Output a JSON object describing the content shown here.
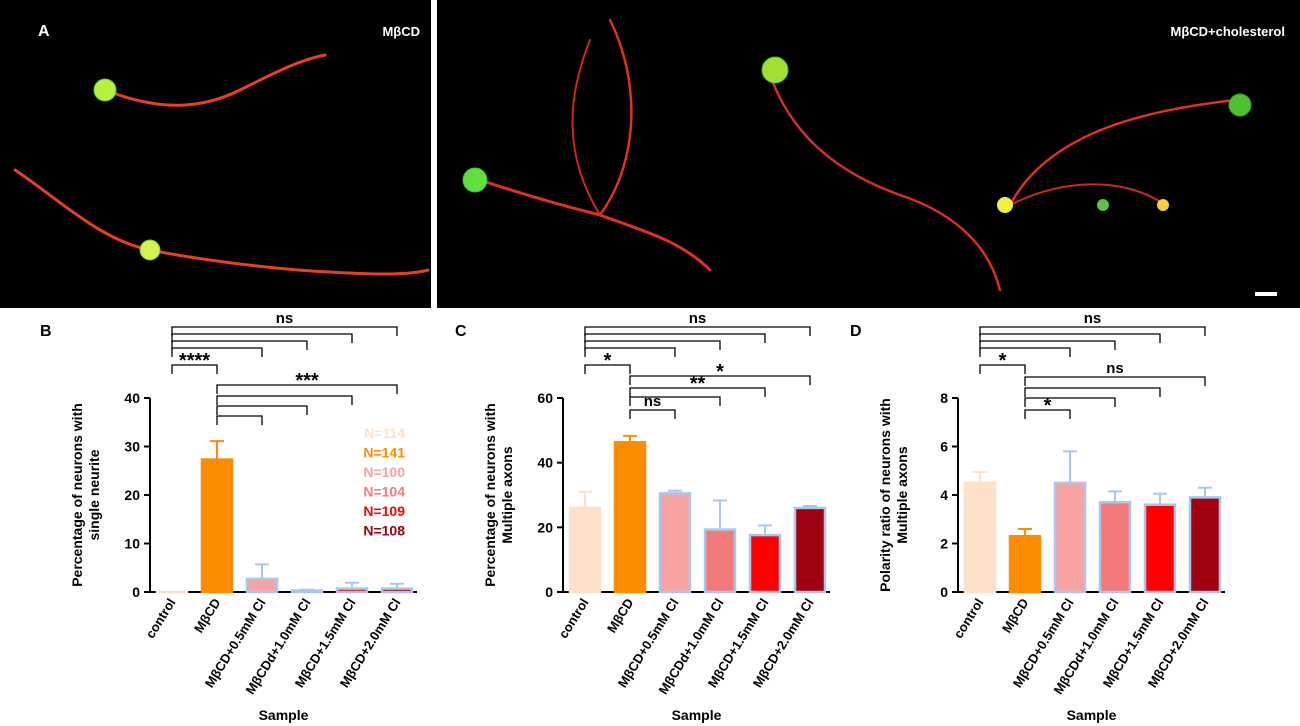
{
  "panel_a": {
    "label": "A",
    "left_title": "MβCD",
    "right_title": "MβCD+cholesterol"
  },
  "chart_data": [
    {
      "type": "bar",
      "panel": "B",
      "xlabel": "Sample",
      "ylabel": [
        "Percentage of neurons with",
        "single neurite"
      ],
      "categories": [
        "control",
        "MβCD",
        "MβCD+0.5mM Cl",
        "MβCDd+1.0mM Cl",
        "MβCD+1.5mM Cl",
        "MβCD+2.0mM Cl"
      ],
      "values": [
        0,
        27.3,
        2.7,
        0.3,
        0.7,
        0.7
      ],
      "errors": [
        0,
        3.8,
        3.0,
        0.2,
        1.2,
        1.0
      ],
      "colors": [
        "#fde0c5",
        "#ff8c00",
        "#f7a3a3",
        "#f27a7a",
        "#ff0000",
        "#a00010"
      ],
      "edgecolors": [
        "#fde0c5",
        "#ff8c00",
        "#a6c8f0",
        "#a6c8f0",
        "#a6c8f0",
        "#a6c8f0"
      ],
      "ylim": [
        0,
        40
      ],
      "yticks": [
        0,
        10,
        20,
        30,
        40
      ],
      "n_labels": [
        "N=114",
        "N=141",
        "N=100",
        "N=104",
        "N=109",
        "N=108"
      ],
      "annotations": [
        "ns",
        "****",
        "***"
      ]
    },
    {
      "type": "bar",
      "panel": "C",
      "xlabel": "Sample",
      "ylabel": [
        "Percentage of neurons with",
        "Multiple axons"
      ],
      "categories": [
        "control",
        "MβCD",
        "MβCD+0.5mM Cl",
        "MβCDd+1.0mM Cl",
        "MβCD+1.5mM Cl",
        "MβCD+2.0mM Cl"
      ],
      "values": [
        26,
        46.3,
        30.5,
        19.3,
        17.6,
        26
      ],
      "errors": [
        5,
        2,
        0.8,
        9,
        3,
        0.6
      ],
      "colors": [
        "#fde0c5",
        "#ff8c00",
        "#f7a3a3",
        "#f27a7a",
        "#ff0000",
        "#a00010"
      ],
      "edgecolors": [
        "#fde0c5",
        "#ff8c00",
        "#a6c8f0",
        "#a6c8f0",
        "#a6c8f0",
        "#a6c8f0"
      ],
      "ylim": [
        0,
        60
      ],
      "yticks": [
        0,
        20,
        40,
        60
      ],
      "annotations": [
        "ns",
        "*",
        "ns",
        "**",
        "*"
      ]
    },
    {
      "type": "bar",
      "panel": "D",
      "xlabel": "Sample",
      "ylabel": [
        "Polarity ratio of neurons with",
        "Multiple axons"
      ],
      "categories": [
        "control",
        "MβCD",
        "MβCD+0.5mM Cl",
        "MβCDd+1.0mM Cl",
        "MβCD+1.5mM Cl",
        "MβCD+2.0mM Cl"
      ],
      "values": [
        4.5,
        2.3,
        4.5,
        3.7,
        3.6,
        3.9
      ],
      "errors": [
        0.45,
        0.3,
        1.3,
        0.45,
        0.45,
        0.4
      ],
      "colors": [
        "#fde0c5",
        "#ff8c00",
        "#f7a3a3",
        "#f27a7a",
        "#ff0000",
        "#a00010"
      ],
      "edgecolors": [
        "#fde0c5",
        "#ff8c00",
        "#a6c8f0",
        "#a6c8f0",
        "#a6c8f0",
        "#a6c8f0"
      ],
      "ylim": [
        0,
        8
      ],
      "yticks": [
        0,
        2,
        4,
        6,
        8
      ],
      "annotations": [
        "ns",
        "*",
        "ns",
        "*"
      ]
    }
  ]
}
